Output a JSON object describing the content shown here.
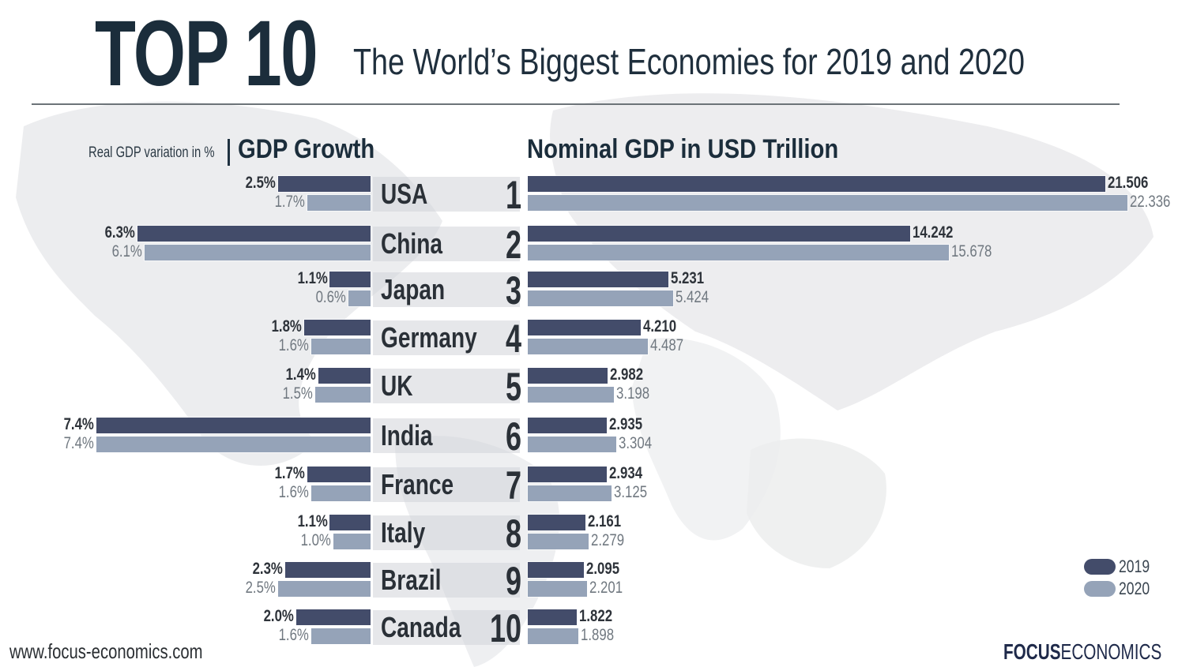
{
  "header": {
    "title": "TOP 10",
    "subtitle": "The World’s Biggest Economies for 2019 and 2020"
  },
  "sections": {
    "left_note": "Real GDP variation in %",
    "left_title": "GDP Growth",
    "right_title": "Nominal GDP in USD Trillion"
  },
  "legend": {
    "items": [
      {
        "label": "2019",
        "color": "#434c6a"
      },
      {
        "label": "2020",
        "color": "#95a3b8"
      }
    ]
  },
  "footer": {
    "url": "www.focus-economics.com",
    "brand_bold": "FOCUS",
    "brand_thin": "ECONOMICS"
  },
  "colors": {
    "series_2019": "#434c6a",
    "series_2020": "#95a3b8",
    "title": "#1b2d3b"
  },
  "chart_data": [
    {
      "type": "bar",
      "orientation": "horizontal",
      "title": "GDP Growth",
      "subtitle": "Real GDP variation in %",
      "categories": [
        "USA",
        "China",
        "Japan",
        "Germany",
        "UK",
        "India",
        "France",
        "Italy",
        "Brazil",
        "Canada"
      ],
      "ranks": [
        "1",
        "2",
        "3",
        "4",
        "5",
        "6",
        "7",
        "8",
        "9",
        "10"
      ],
      "series": [
        {
          "name": "2019",
          "values": [
            2.5,
            6.3,
            1.1,
            1.8,
            1.4,
            7.4,
            1.7,
            1.1,
            2.3,
            2.0
          ],
          "labels": [
            "2.5%",
            "6.3%",
            "1.1%",
            "1.8%",
            "1.4%",
            "7.4%",
            "1.7%",
            "1.1%",
            "2.3%",
            "2.0%"
          ]
        },
        {
          "name": "2020",
          "values": [
            1.7,
            6.1,
            0.6,
            1.6,
            1.5,
            7.4,
            1.6,
            1.0,
            2.5,
            1.6
          ],
          "labels": [
            "1.7%",
            "6.1%",
            "0.6%",
            "1.6%",
            "1.5%",
            "7.4%",
            "1.6%",
            "1.0%",
            "2.5%",
            "1.6%"
          ]
        }
      ],
      "direction": "right-to-left",
      "xlim": [
        0,
        7.4
      ],
      "grid": false
    },
    {
      "type": "bar",
      "orientation": "horizontal",
      "title": "Nominal GDP in USD Trillion",
      "categories": [
        "USA",
        "China",
        "Japan",
        "Germany",
        "UK",
        "India",
        "France",
        "Italy",
        "Brazil",
        "Canada"
      ],
      "series": [
        {
          "name": "2019",
          "values": [
            21.506,
            14.242,
            5.231,
            4.21,
            2.982,
            2.935,
            2.934,
            2.161,
            2.095,
            1.822
          ],
          "labels": [
            "21.506",
            "14.242",
            "5.231",
            "4.210",
            "2.982",
            "2.935",
            "2.934",
            "2.161",
            "2.095",
            "1.822"
          ]
        },
        {
          "name": "2020",
          "values": [
            22.336,
            15.678,
            5.424,
            4.487,
            3.198,
            3.304,
            3.125,
            2.279,
            2.201,
            1.898
          ],
          "labels": [
            "22.336",
            "15.678",
            "5.424",
            "4.487",
            "3.198",
            "3.304",
            "3.125",
            "2.279",
            "2.201",
            "1.898"
          ]
        }
      ],
      "direction": "left-to-right",
      "xlim": [
        0,
        22.336
      ],
      "legend": "bottom-right",
      "grid": false
    }
  ]
}
